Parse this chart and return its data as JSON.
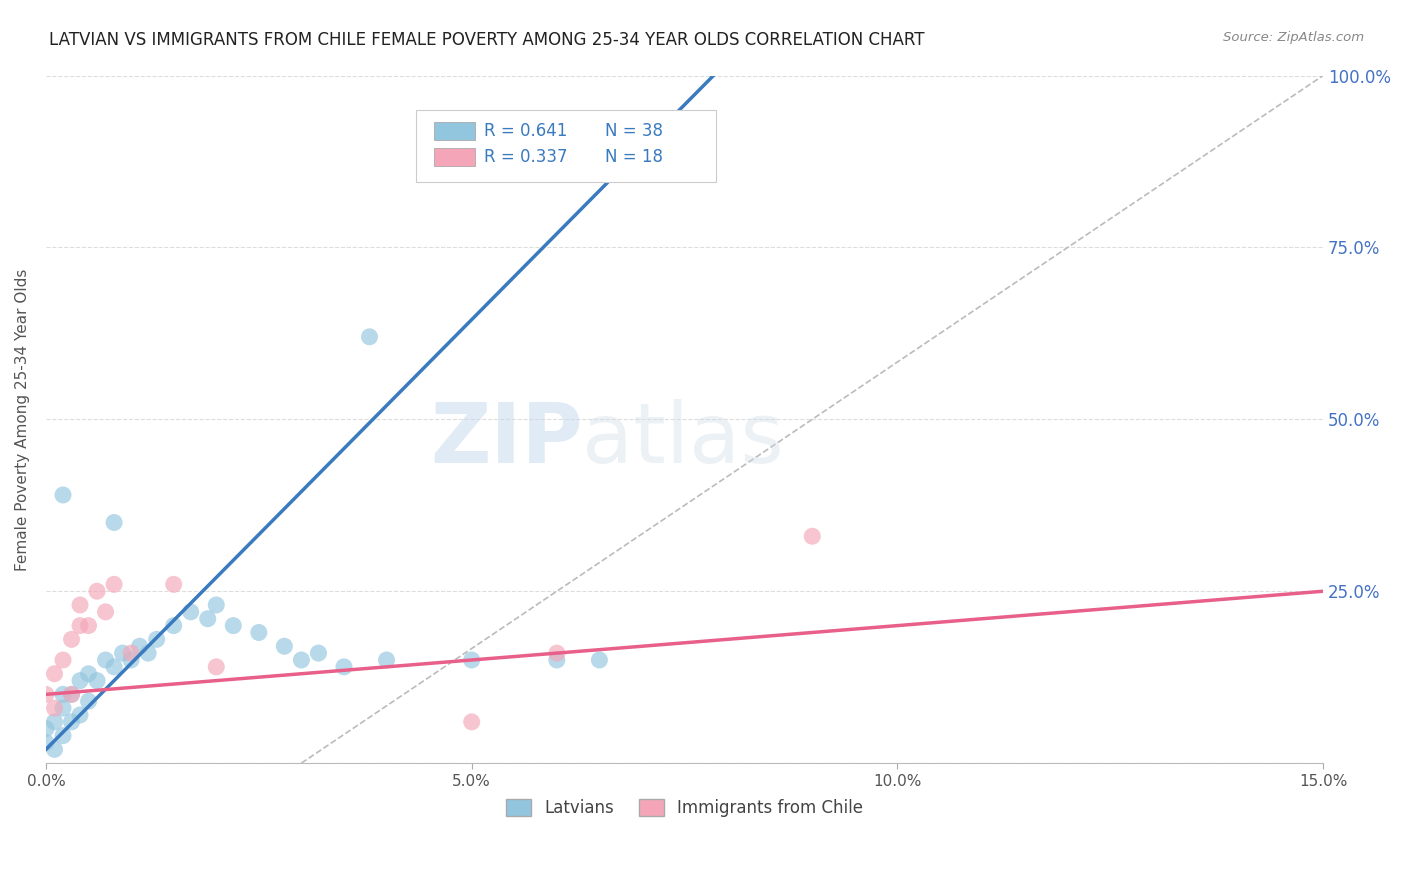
{
  "title": "LATVIAN VS IMMIGRANTS FROM CHILE FEMALE POVERTY AMONG 25-34 YEAR OLDS CORRELATION CHART",
  "source": "Source: ZipAtlas.com",
  "ylabel": "Female Poverty Among 25-34 Year Olds",
  "xlim": [
    0.0,
    0.15
  ],
  "ylim": [
    0.0,
    1.0
  ],
  "xticks": [
    0.0,
    0.05,
    0.1,
    0.15
  ],
  "xtick_labels": [
    "0.0%",
    "5.0%",
    "10.0%",
    "15.0%"
  ],
  "yticks": [
    0.0,
    0.25,
    0.5,
    0.75,
    1.0
  ],
  "ytick_labels": [
    "",
    "25.0%",
    "50.0%",
    "75.0%",
    "100.0%"
  ],
  "legend_r1": "R = 0.641",
  "legend_n1": "N = 38",
  "legend_r2": "R = 0.337",
  "legend_n2": "N = 18",
  "blue_color": "#92c5de",
  "pink_color": "#f4a6b8",
  "blue_line_color": "#3a7abf",
  "pink_line_color": "#e8608a",
  "blue_scatter": [
    [
      0.0,
      0.05
    ],
    [
      0.0,
      0.03
    ],
    [
      0.001,
      0.02
    ],
    [
      0.001,
      0.06
    ],
    [
      0.002,
      0.04
    ],
    [
      0.002,
      0.08
    ],
    [
      0.002,
      0.1
    ],
    [
      0.003,
      0.06
    ],
    [
      0.003,
      0.1
    ],
    [
      0.004,
      0.07
    ],
    [
      0.004,
      0.12
    ],
    [
      0.005,
      0.09
    ],
    [
      0.005,
      0.13
    ],
    [
      0.006,
      0.12
    ],
    [
      0.007,
      0.15
    ],
    [
      0.008,
      0.14
    ],
    [
      0.009,
      0.16
    ],
    [
      0.01,
      0.15
    ],
    [
      0.011,
      0.17
    ],
    [
      0.012,
      0.16
    ],
    [
      0.013,
      0.18
    ],
    [
      0.015,
      0.2
    ],
    [
      0.017,
      0.22
    ],
    [
      0.019,
      0.21
    ],
    [
      0.02,
      0.23
    ],
    [
      0.022,
      0.2
    ],
    [
      0.025,
      0.19
    ],
    [
      0.028,
      0.17
    ],
    [
      0.03,
      0.15
    ],
    [
      0.032,
      0.16
    ],
    [
      0.035,
      0.14
    ],
    [
      0.038,
      0.62
    ],
    [
      0.04,
      0.15
    ],
    [
      0.05,
      0.15
    ],
    [
      0.06,
      0.15
    ],
    [
      0.065,
      0.15
    ],
    [
      0.002,
      0.39
    ],
    [
      0.008,
      0.35
    ]
  ],
  "pink_scatter": [
    [
      0.0,
      0.1
    ],
    [
      0.001,
      0.08
    ],
    [
      0.001,
      0.13
    ],
    [
      0.002,
      0.15
    ],
    [
      0.003,
      0.1
    ],
    [
      0.003,
      0.18
    ],
    [
      0.004,
      0.2
    ],
    [
      0.004,
      0.23
    ],
    [
      0.005,
      0.2
    ],
    [
      0.006,
      0.25
    ],
    [
      0.007,
      0.22
    ],
    [
      0.008,
      0.26
    ],
    [
      0.01,
      0.16
    ],
    [
      0.015,
      0.26
    ],
    [
      0.02,
      0.14
    ],
    [
      0.06,
      0.16
    ],
    [
      0.09,
      0.33
    ],
    [
      0.05,
      0.06
    ]
  ],
  "background_color": "#ffffff",
  "watermark_zip": "ZIP",
  "watermark_atlas": "atlas",
  "ref_line": [
    [
      0.03,
      0.0
    ],
    [
      0.15,
      1.0
    ]
  ]
}
